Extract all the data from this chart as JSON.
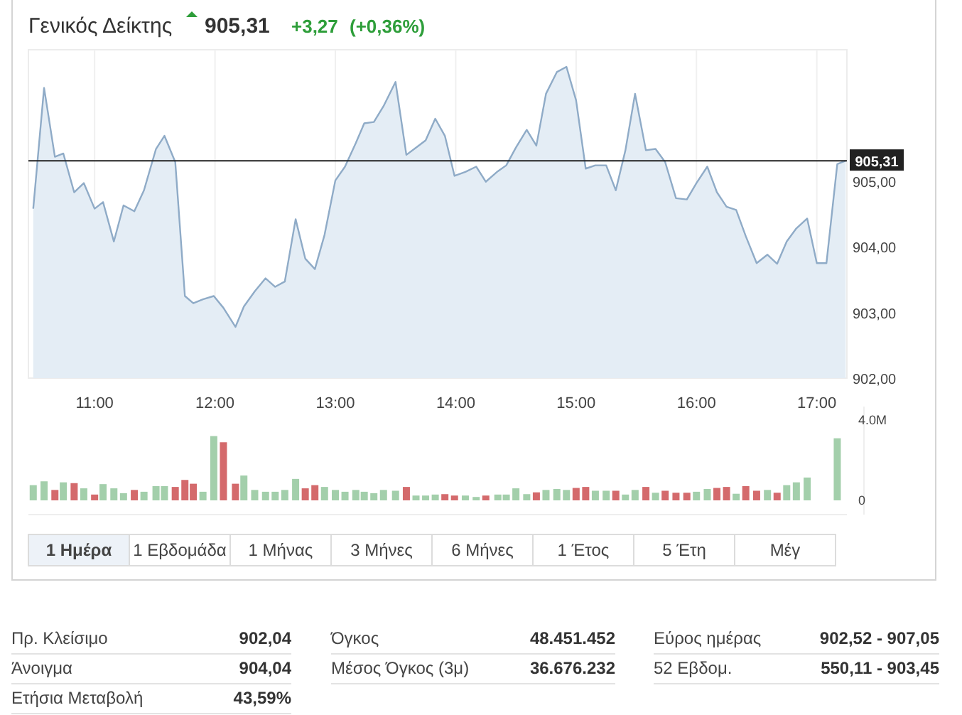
{
  "chart_data": [
    {
      "type": "area",
      "title": "Γενικός Δείκτης",
      "annotations": [
        "905,31",
        "+3,27",
        "(+0,36%)"
      ],
      "x": [
        10.49,
        10.58,
        10.67,
        10.74,
        10.83,
        10.91,
        11.0,
        11.07,
        11.16,
        11.24,
        11.33,
        11.41,
        11.51,
        11.58,
        11.67,
        11.75,
        11.82,
        11.9,
        11.99,
        12.07,
        12.17,
        12.24,
        12.33,
        12.42,
        12.5,
        12.58,
        12.67,
        12.75,
        12.83,
        12.91,
        13.0,
        13.08,
        13.17,
        13.24,
        13.32,
        13.4,
        13.5,
        13.59,
        13.67,
        13.75,
        13.83,
        13.91,
        13.99,
        14.08,
        14.17,
        14.25,
        14.35,
        14.42,
        14.5,
        14.59,
        14.67,
        14.75,
        14.84,
        14.92,
        15.0,
        15.08,
        15.16,
        15.25,
        15.33,
        15.41,
        15.49,
        15.58,
        15.66,
        15.74,
        15.83,
        15.92,
        16.0,
        16.09,
        16.17,
        16.25,
        16.33,
        16.41,
        16.5,
        16.59,
        16.67,
        16.75,
        16.83,
        16.92,
        17.0,
        17.08,
        17.17,
        17.24
      ],
      "series": [
        {
          "color": "#8fabc7",
          "values": [
            904.58,
            906.42,
            905.37,
            905.42,
            904.83,
            904.97,
            904.58,
            904.68,
            904.08,
            904.63,
            904.54,
            904.86,
            905.49,
            905.69,
            905.29,
            903.25,
            903.14,
            903.2,
            903.25,
            903.07,
            902.78,
            903.09,
            903.32,
            903.52,
            903.39,
            903.47,
            904.42,
            903.82,
            903.66,
            904.18,
            905.01,
            905.22,
            905.58,
            905.88,
            905.9,
            906.14,
            906.51,
            905.4,
            905.51,
            905.62,
            905.95,
            905.69,
            905.08,
            905.14,
            905.22,
            904.99,
            905.15,
            905.24,
            905.51,
            905.78,
            905.54,
            906.33,
            906.66,
            906.74,
            906.23,
            905.19,
            905.24,
            905.24,
            904.86,
            905.47,
            906.33,
            905.47,
            905.49,
            905.29,
            904.74,
            904.72,
            904.97,
            905.22,
            904.83,
            904.61,
            904.56,
            904.16,
            903.75,
            903.88,
            903.74,
            904.08,
            904.28,
            904.43,
            903.75,
            903.75,
            905.26,
            905.31
          ]
        }
      ],
      "xlim": [
        10.45,
        17.25
      ],
      "ylim": [
        902,
        907
      ],
      "xticks": [
        {
          "value": 11,
          "label": "11:00"
        },
        {
          "value": 12,
          "label": "12:00"
        },
        {
          "value": 13,
          "label": "13:00"
        },
        {
          "value": 14,
          "label": "14:00"
        },
        {
          "value": 15,
          "label": "15:00"
        },
        {
          "value": 16,
          "label": "16:00"
        },
        {
          "value": 17,
          "label": "17:00"
        }
      ],
      "yticks": [
        {
          "value": 902,
          "label": "902,00"
        },
        {
          "value": 903,
          "label": "903,00"
        },
        {
          "value": 904,
          "label": "904,00"
        },
        {
          "value": 905,
          "label": "905,00"
        }
      ],
      "ref_lines": [
        {
          "axis": "y",
          "value": 905.31,
          "label": "905,31",
          "color": "#222222"
        }
      ],
      "grid": "x"
    },
    {
      "type": "bar",
      "x": [
        10.49,
        10.58,
        10.67,
        10.74,
        10.83,
        10.91,
        11.0,
        11.07,
        11.16,
        11.24,
        11.33,
        11.41,
        11.51,
        11.58,
        11.67,
        11.75,
        11.82,
        11.9,
        11.99,
        12.07,
        12.17,
        12.24,
        12.33,
        12.42,
        12.5,
        12.58,
        12.67,
        12.75,
        12.83,
        12.91,
        13.0,
        13.08,
        13.17,
        13.24,
        13.32,
        13.4,
        13.5,
        13.59,
        13.67,
        13.75,
        13.83,
        13.91,
        13.99,
        14.08,
        14.17,
        14.25,
        14.35,
        14.42,
        14.5,
        14.59,
        14.67,
        14.75,
        14.84,
        14.92,
        15.0,
        15.08,
        15.16,
        15.25,
        15.33,
        15.41,
        15.49,
        15.58,
        15.66,
        15.74,
        15.83,
        15.92,
        16.0,
        16.09,
        16.17,
        16.25,
        16.33,
        16.41,
        16.5,
        16.59,
        16.67,
        16.75,
        16.83,
        16.92,
        17.17
      ],
      "values": [
        0.76,
        0.95,
        0.52,
        0.9,
        0.86,
        0.6,
        0.29,
        0.81,
        0.6,
        0.36,
        0.52,
        0.43,
        0.71,
        0.71,
        0.67,
        1.02,
        0.83,
        0.43,
        3.21,
        2.9,
        0.83,
        1.24,
        0.52,
        0.43,
        0.43,
        0.52,
        1.07,
        0.6,
        0.76,
        0.67,
        0.52,
        0.43,
        0.52,
        0.43,
        0.36,
        0.52,
        0.48,
        0.67,
        0.24,
        0.24,
        0.29,
        0.31,
        0.24,
        0.24,
        0.17,
        0.24,
        0.29,
        0.29,
        0.6,
        0.31,
        0.4,
        0.52,
        0.57,
        0.52,
        0.62,
        0.67,
        0.48,
        0.48,
        0.48,
        0.29,
        0.52,
        0.67,
        0.38,
        0.48,
        0.38,
        0.38,
        0.43,
        0.57,
        0.62,
        0.67,
        0.33,
        0.71,
        0.48,
        0.52,
        0.38,
        0.76,
        0.9,
        1.14,
        3.1
      ],
      "colors": [
        "#a3cfab",
        "#a3cfab",
        "#d46a6c",
        "#a3cfab",
        "#d46a6c",
        "#a3cfab",
        "#d46a6c",
        "#a3cfab",
        "#a3cfab",
        "#a3cfab",
        "#d46a6c",
        "#a3cfab",
        "#a3cfab",
        "#a3cfab",
        "#d46a6c",
        "#d46a6c",
        "#d46a6c",
        "#a3cfab",
        "#a3cfab",
        "#d46a6c",
        "#d46a6c",
        "#a3cfab",
        "#a3cfab",
        "#a3cfab",
        "#a3cfab",
        "#a3cfab",
        "#a3cfab",
        "#d46a6c",
        "#d46a6c",
        "#a3cfab",
        "#a3cfab",
        "#a3cfab",
        "#a3cfab",
        "#a3cfab",
        "#a3cfab",
        "#a3cfab",
        "#a3cfab",
        "#d46a6c",
        "#a3cfab",
        "#a3cfab",
        "#a3cfab",
        "#d46a6c",
        "#d46a6c",
        "#a3cfab",
        "#a3cfab",
        "#d46a6c",
        "#a3cfab",
        "#a3cfab",
        "#a3cfab",
        "#a3cfab",
        "#d46a6c",
        "#a3cfab",
        "#a3cfab",
        "#a3cfab",
        "#d46a6c",
        "#d46a6c",
        "#a3cfab",
        "#a3cfab",
        "#d46a6c",
        "#a3cfab",
        "#a3cfab",
        "#d46a6c",
        "#a3cfab",
        "#d46a6c",
        "#d46a6c",
        "#d46a6c",
        "#a3cfab",
        "#a3cfab",
        "#d46a6c",
        "#d46a6c",
        "#a3cfab",
        "#d46a6c",
        "#d46a6c",
        "#a3cfab",
        "#d46a6c",
        "#a3cfab",
        "#a3cfab",
        "#a3cfab",
        "#a3cfab"
      ],
      "xlim": [
        10.45,
        17.25
      ],
      "ylim": [
        0,
        4.4
      ],
      "yticks": [
        0,
        {
          "value": 4,
          "label": "4.0M"
        }
      ],
      "tick_labels": "y",
      "grid": "x"
    },
    {
      "type": "other",
      "categories": [
        "1 Ημέρα",
        "1 Εβδομάδα",
        "1 Μήνας",
        "3 Μήνες",
        "6 Μήνες",
        "1 Έτος",
        "5 Έτη",
        "Μέγ"
      ]
    },
    {
      "type": "other",
      "annotations": [
        "Πρ. Κλείσιμο",
        "902,04",
        "Άνοιγμα",
        "904,04",
        "Ετήσια Μεταβολή",
        "43,59%",
        "Όγκος",
        "48.451.452",
        "Μέσος Όγκος (3μ)",
        "36.676.232",
        "Εύρος ημέρας",
        "902,52 - 907,05",
        "52 Εβδομ.",
        "550,11 - 903,45"
      ]
    }
  ]
}
